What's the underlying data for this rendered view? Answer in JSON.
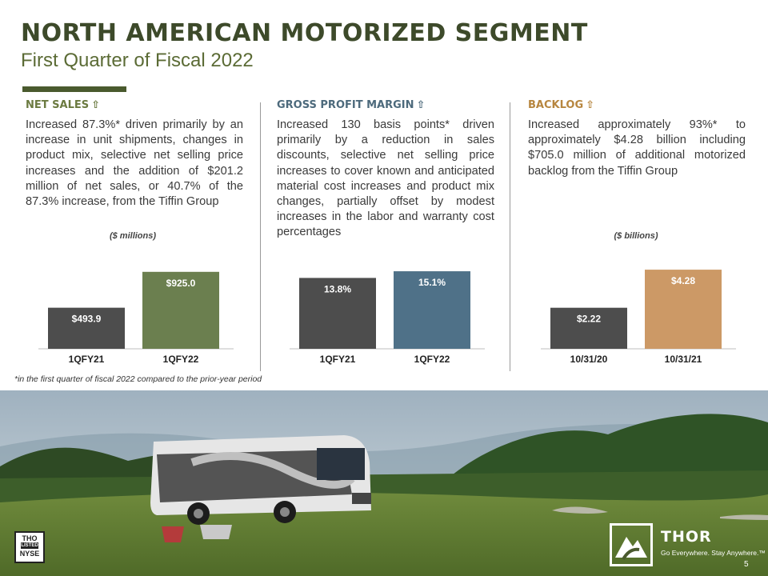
{
  "header": {
    "title": "NORTH AMERICAN MOTORIZED SEGMENT",
    "subtitle": "First Quarter of Fiscal 2022"
  },
  "columns": [
    {
      "heading": "NET SALES",
      "heading_color": "#6b7a40",
      "arrow": "⇧",
      "body": "Increased 87.3%* driven primarily by an increase in unit shipments, changes in product mix, selective net selling price increases and the addition of $201.2 million of net sales, or 40.7% of the 87.3% increase, from the Tiffin Group",
      "unit_label": "($ millions)"
    },
    {
      "heading": "GROSS PROFIT MARGIN",
      "heading_color": "#4d6a7c",
      "arrow": "⇧",
      "body": "Increased 130 basis points* driven primarily by a reduction in sales discounts, selective net selling price increases to cover known and anticipated material cost increases and product mix changes, partially offset by modest increases in the labor and warranty cost percentages",
      "unit_label": ""
    },
    {
      "heading": "BACKLOG",
      "heading_color": "#b7863f",
      "arrow": "⇧",
      "body": "Increased approximately 93%* to approximately $4.28 billion including $705.0 million of additional motorized backlog from the Tiffin Group",
      "unit_label": "($ billions)"
    }
  ],
  "chart_data": [
    {
      "type": "bar",
      "categories": [
        "1QFY21",
        "1QFY22"
      ],
      "values": [
        493.9,
        925.0
      ],
      "labels": [
        "$493.9",
        "$925.0"
      ],
      "colors": [
        "#4d4d4d",
        "#6b7f4f"
      ],
      "ylim": [
        0,
        1000
      ],
      "title": "",
      "xlabel": "",
      "ylabel": "($ millions)"
    },
    {
      "type": "bar",
      "categories": [
        "1QFY21",
        "1QFY22"
      ],
      "values": [
        13.8,
        15.1
      ],
      "labels": [
        "13.8%",
        "15.1%"
      ],
      "colors": [
        "#4d4d4d",
        "#4f7188"
      ],
      "ylim": [
        0,
        16.2
      ],
      "title": "",
      "xlabel": "",
      "ylabel": ""
    },
    {
      "type": "bar",
      "categories": [
        "10/31/20",
        "10/31/21"
      ],
      "values": [
        2.22,
        4.28
      ],
      "labels": [
        "$2.22",
        "$4.28"
      ],
      "colors": [
        "#4d4d4d",
        "#cc9966"
      ],
      "ylim": [
        0,
        4.5
      ],
      "title": "",
      "xlabel": "",
      "ylabel": "($ billions)"
    }
  ],
  "footnote": "*in the first quarter of fiscal 2022 compared to the prior-year period",
  "footer": {
    "nyse_line1": "THO",
    "nyse_line2": "LISTED",
    "nyse_line3": "NYSE",
    "brand": "THOR",
    "tagline": "Go Everywhere. Stay Anywhere.™",
    "page_number": "5"
  }
}
